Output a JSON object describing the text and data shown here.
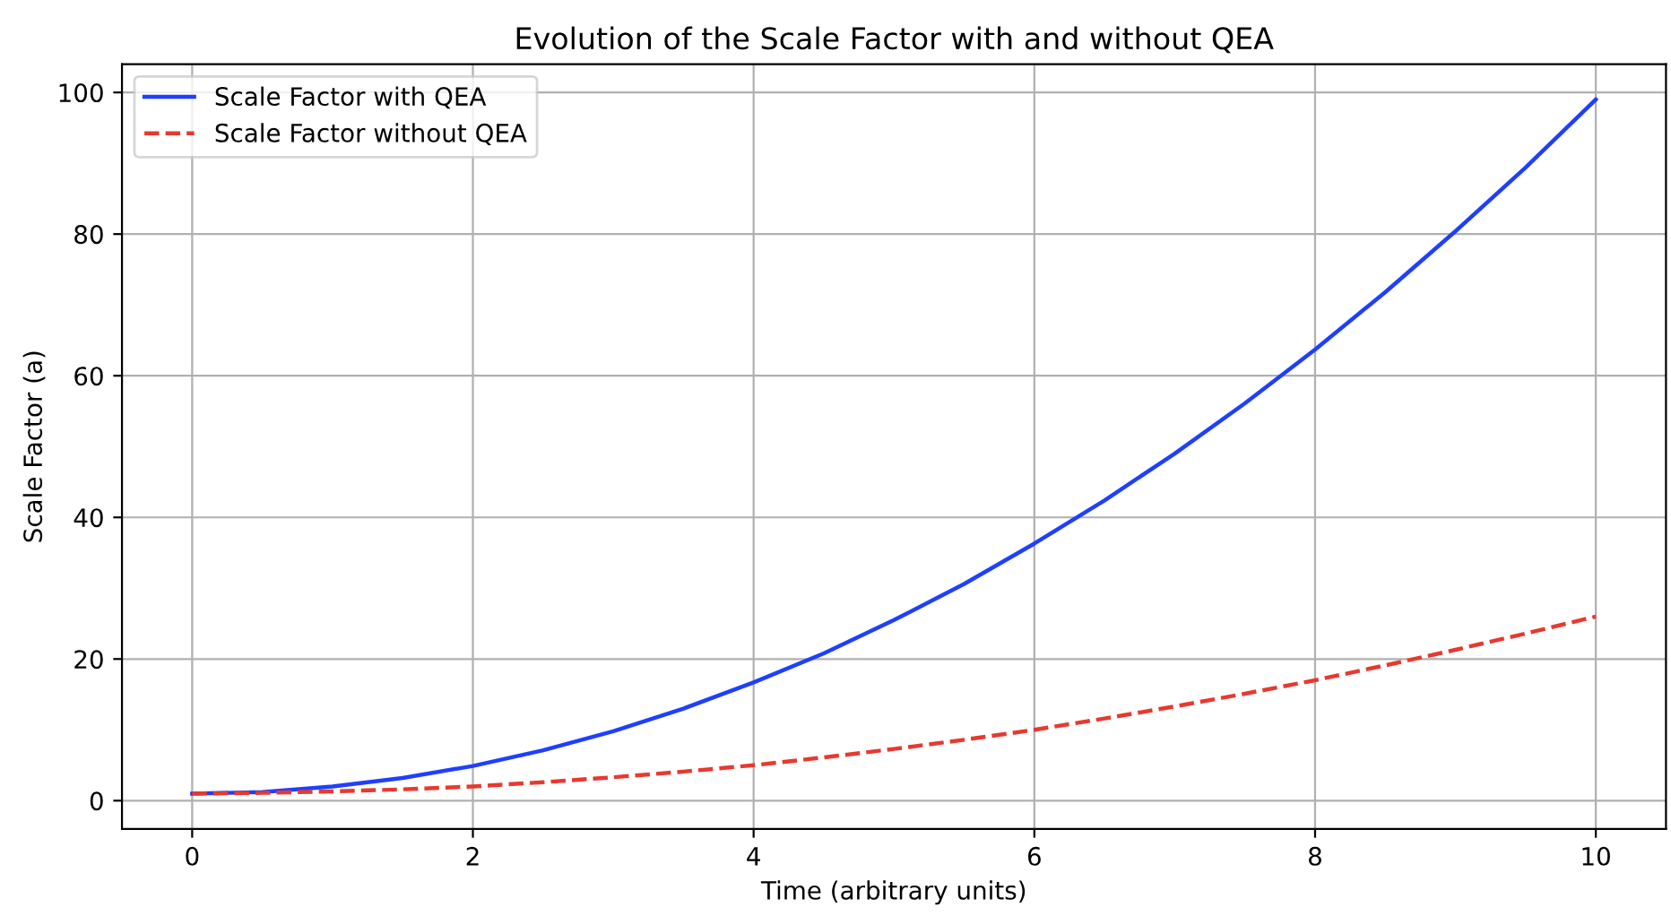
{
  "chart_data": {
    "type": "line",
    "title": "Evolution of the Scale Factor with and without QEA",
    "xlabel": "Time (arbitrary units)",
    "ylabel": "Scale Factor (a)",
    "x": [
      0,
      0.5,
      1,
      1.5,
      2,
      2.5,
      3,
      3.5,
      4,
      4.5,
      5,
      5.5,
      6,
      6.5,
      7,
      7.5,
      8,
      8.5,
      9,
      9.5,
      10
    ],
    "series": [
      {
        "name": "Scale Factor with QEA",
        "color": "#1f3fff",
        "line_style": "solid",
        "values": [
          1,
          1.2,
          2,
          3.2,
          4.9,
          7.1,
          9.8,
          13,
          16.7,
          20.8,
          25.5,
          30.6,
          36.3,
          42.4,
          49,
          56.1,
          63.7,
          71.8,
          80.4,
          89.4,
          99
        ]
      },
      {
        "name": "Scale Factor without QEA",
        "color": "#e8392f",
        "line_style": "dashed",
        "values": [
          1,
          1.1,
          1.3,
          1.6,
          2,
          2.6,
          3.3,
          4.1,
          5,
          6.1,
          7.3,
          8.6,
          10,
          11.6,
          13.3,
          15.1,
          17,
          19.1,
          21.3,
          23.6,
          26
        ]
      }
    ],
    "xlim": [
      -0.5,
      10.5
    ],
    "ylim": [
      -4,
      104
    ],
    "xticks": [
      0,
      2,
      4,
      6,
      8,
      10
    ],
    "yticks": [
      0,
      20,
      40,
      60,
      80,
      100
    ],
    "grid": true,
    "legend": "top left",
    "marker": "none"
  }
}
